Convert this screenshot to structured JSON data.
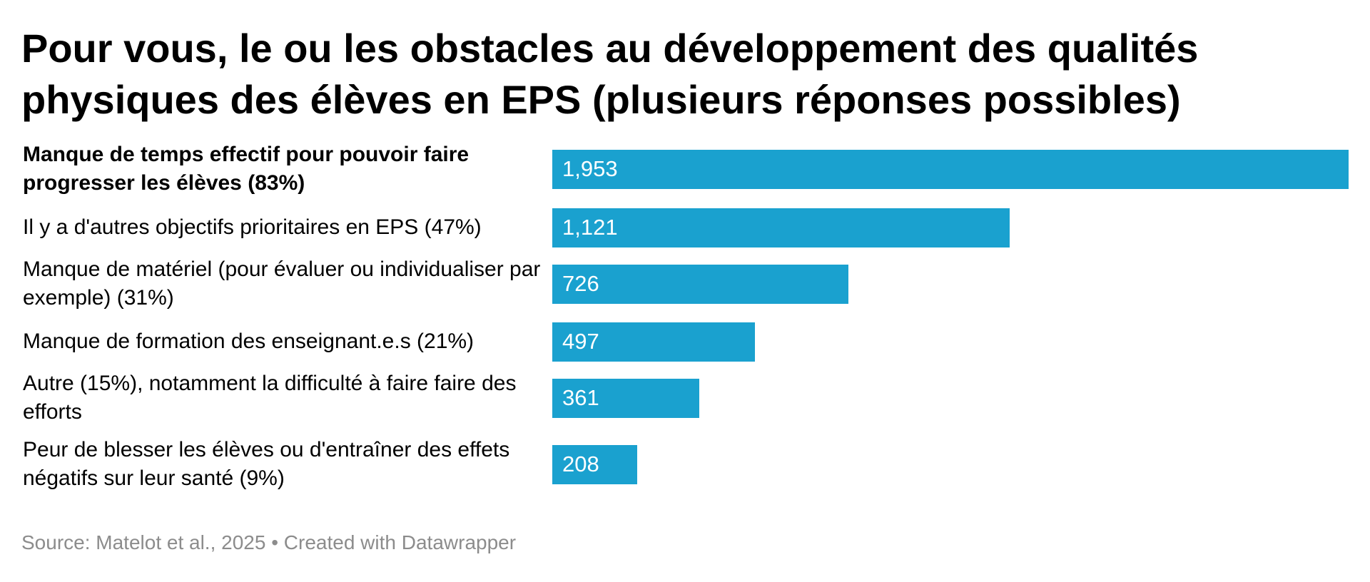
{
  "chart_data": {
    "type": "bar",
    "orientation": "horizontal",
    "title": "Pour vous, le ou les obstacles au développement des qualités physiques des élèves en EPS (plusieurs réponses possibles)",
    "categories": [
      "Manque de temps effectif pour pouvoir faire progresser les élèves (83%)",
      "Il y a d'autres objectifs prioritaires en EPS (47%)",
      "Manque de matériel (pour évaluer ou individualiser par exemple) (31%)",
      "Manque de formation des enseignant.e.s (21%)",
      "Autre (15%), notamment la difficulté à faire faire des efforts",
      "Peur de blesser les élèves ou d'entraîner des effets négatifs sur leur santé (9%)"
    ],
    "values": [
      1953,
      1121,
      726,
      497,
      361,
      208
    ],
    "value_labels": [
      "1,953",
      "1,121",
      "726",
      "497",
      "361",
      "208"
    ],
    "bold_category_index": 0,
    "xlim": [
      0,
      1953
    ],
    "bar_color": "#1aa1cf",
    "source": "Source: Matelot et al., 2025 • Created with Datawrapper"
  }
}
